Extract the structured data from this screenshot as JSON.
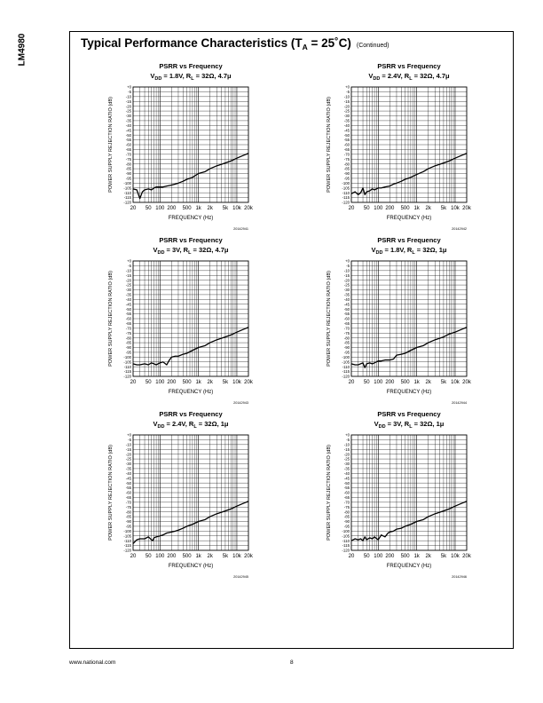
{
  "side_label": "LM4980",
  "heading": {
    "title_start": "Typical Performance Characteristics (T",
    "subscript": "A",
    "title_end": " = 25˚C)",
    "continued": "(Continued)"
  },
  "footer": {
    "website": "www.national.com",
    "page_number": "8"
  },
  "shared_axes": {
    "xlabel": "FREQUENCY (Hz)",
    "ylabel": "POWER SUPPLY REJECTION RATIO (dB)",
    "x_tick_labels": [
      "20",
      "50",
      "100",
      "200",
      "500",
      "1k",
      "2k",
      "5k",
      "10k",
      "20k"
    ],
    "y_tick_labels": [
      "+0",
      "-5",
      "-10",
      "-15",
      "-20",
      "-25",
      "-30",
      "-35",
      "-40",
      "-45",
      "-50",
      "-55",
      "-60",
      "-65",
      "-70",
      "-75",
      "-80",
      "-85",
      "-90",
      "-95",
      "-100",
      "-105",
      "-110",
      "-115",
      "-120"
    ]
  },
  "chart_data": [
    {
      "type": "line",
      "title": "PSRR vs Frequency",
      "subtitle": "VDD = 1.8V, RL = 32Ω, 4.7μ",
      "subtitle_parts": [
        "V",
        "DD",
        " = 1.8V, R",
        "L",
        " = 32Ω, 4.7μ"
      ],
      "figure_id": "20142941",
      "xlabel": "FREQUENCY (Hz)",
      "ylabel": "POWER SUPPLY REJECTION RATIO (dB)",
      "xscale": "log",
      "xlim": [
        20,
        20000
      ],
      "ylim": [
        -120,
        0
      ],
      "grid": true,
      "x": [
        20,
        25,
        30,
        35,
        40,
        50,
        60,
        70,
        80,
        100,
        120,
        150,
        200,
        250,
        300,
        400,
        500,
        700,
        1000,
        1500,
        2000,
        3000,
        5000,
        7000,
        10000,
        15000,
        20000
      ],
      "y": [
        -106,
        -107,
        -116,
        -109,
        -107,
        -106,
        -107,
        -105,
        -104,
        -104,
        -104,
        -103,
        -102,
        -101,
        -100,
        -98,
        -96,
        -94,
        -90,
        -88,
        -85,
        -82,
        -79,
        -77,
        -74,
        -71,
        -69
      ]
    },
    {
      "type": "line",
      "title": "PSRR vs Frequency",
      "subtitle": "VDD = 2.4V, RL = 32Ω, 4.7μ",
      "subtitle_parts": [
        "V",
        "DD",
        " = 2.4V, R",
        "L",
        " = 32Ω, 4.7μ"
      ],
      "figure_id": "20142942",
      "xlabel": "FREQUENCY (Hz)",
      "ylabel": "POWER SUPPLY REJECTION RATIO (dB)",
      "xscale": "log",
      "xlim": [
        20,
        20000
      ],
      "ylim": [
        -120,
        0
      ],
      "grid": true,
      "x": [
        20,
        25,
        30,
        35,
        40,
        45,
        50,
        60,
        70,
        80,
        100,
        120,
        150,
        200,
        250,
        300,
        400,
        500,
        700,
        1000,
        1500,
        2000,
        3000,
        5000,
        7000,
        10000,
        15000,
        20000
      ],
      "y": [
        -111,
        -109,
        -112,
        -110,
        -105,
        -112,
        -109,
        -108,
        -106,
        -107,
        -105,
        -105,
        -104,
        -103,
        -101,
        -100,
        -98,
        -96,
        -94,
        -91,
        -88,
        -85,
        -82,
        -79,
        -77,
        -74,
        -71,
        -69
      ]
    },
    {
      "type": "line",
      "title": "PSRR vs Frequency",
      "subtitle": "VDD = 3V, RL = 32Ω, 4.7μ",
      "subtitle_parts": [
        "V",
        "DD",
        " = 3V, R",
        "L",
        " = 32Ω, 4.7μ"
      ],
      "figure_id": "20142943",
      "xlabel": "FREQUENCY (Hz)",
      "ylabel": "POWER SUPPLY REJECTION RATIO (dB)",
      "xscale": "log",
      "xlim": [
        20,
        20000
      ],
      "ylim": [
        -120,
        0
      ],
      "grid": true,
      "x": [
        20,
        25,
        30,
        40,
        50,
        60,
        70,
        80,
        100,
        120,
        150,
        170,
        200,
        250,
        300,
        400,
        500,
        700,
        1000,
        1500,
        2000,
        3000,
        5000,
        7000,
        10000,
        15000,
        20000
      ],
      "y": [
        -107,
        -108,
        -108,
        -107,
        -108,
        -106,
        -107,
        -108,
        -106,
        -105,
        -108,
        -104,
        -100,
        -99,
        -99,
        -97,
        -96,
        -93,
        -90,
        -88,
        -85,
        -82,
        -79,
        -77,
        -74,
        -71,
        -69
      ]
    },
    {
      "type": "line",
      "title": "PSRR vs Frequency",
      "subtitle": "VDD = 1.8V, RL = 32Ω, 1μ",
      "subtitle_parts": [
        "V",
        "DD",
        " = 1.8V, R",
        "L",
        " = 32Ω, 1μ"
      ],
      "figure_id": "20142944",
      "xlabel": "FREQUENCY (Hz)",
      "ylabel": "POWER SUPPLY REJECTION RATIO (dB)",
      "xscale": "log",
      "xlim": [
        20,
        20000
      ],
      "ylim": [
        -120,
        0
      ],
      "grid": true,
      "x": [
        20,
        25,
        30,
        40,
        45,
        50,
        60,
        70,
        80,
        100,
        120,
        150,
        200,
        250,
        300,
        400,
        500,
        700,
        1000,
        1500,
        2000,
        3000,
        5000,
        7000,
        10000,
        15000,
        20000
      ],
      "y": [
        -107,
        -108,
        -108,
        -106,
        -111,
        -107,
        -106,
        -107,
        -106,
        -104,
        -104,
        -103,
        -103,
        -102,
        -98,
        -97,
        -96,
        -93,
        -90,
        -88,
        -85,
        -82,
        -79,
        -76,
        -74,
        -71,
        -69
      ]
    },
    {
      "type": "line",
      "title": "PSRR vs Frequency",
      "subtitle": "VDD = 2.4V, RL = 32Ω, 1μ",
      "subtitle_parts": [
        "V",
        "DD",
        " = 2.4V, R",
        "L",
        " = 32Ω, 1μ"
      ],
      "figure_id": "20142945",
      "xlabel": "FREQUENCY (Hz)",
      "ylabel": "POWER SUPPLY REJECTION RATIO (dB)",
      "xscale": "log",
      "xlim": [
        20,
        20000
      ],
      "ylim": [
        -120,
        0
      ],
      "grid": true,
      "x": [
        20,
        25,
        30,
        35,
        40,
        50,
        60,
        65,
        70,
        80,
        100,
        120,
        150,
        200,
        250,
        300,
        400,
        500,
        700,
        1000,
        1500,
        2000,
        3000,
        5000,
        7000,
        10000,
        15000,
        20000
      ],
      "y": [
        -113,
        -109,
        -108,
        -108,
        -108,
        -106,
        -109,
        -110,
        -107,
        -106,
        -105,
        -104,
        -102,
        -101,
        -100,
        -99,
        -97,
        -95,
        -93,
        -90,
        -88,
        -85,
        -82,
        -79,
        -77,
        -74,
        -71,
        -69
      ]
    },
    {
      "type": "line",
      "title": "PSRR vs Frequency",
      "subtitle": "VDD = 3V, RL = 32Ω, 1μ",
      "subtitle_parts": [
        "V",
        "DD",
        " = 3V, R",
        "L",
        " = 32Ω, 1μ"
      ],
      "figure_id": "20142946",
      "xlabel": "FREQUENCY (Hz)",
      "ylabel": "POWER SUPPLY REJECTION RATIO (dB)",
      "xscale": "log",
      "xlim": [
        20,
        20000
      ],
      "ylim": [
        -120,
        0
      ],
      "grid": true,
      "x": [
        20,
        25,
        30,
        35,
        40,
        45,
        50,
        60,
        70,
        80,
        100,
        120,
        150,
        180,
        200,
        250,
        300,
        400,
        500,
        700,
        1000,
        1500,
        2000,
        3000,
        5000,
        7000,
        10000,
        15000,
        20000
      ],
      "y": [
        -110,
        -108,
        -109,
        -108,
        -110,
        -106,
        -109,
        -107,
        -108,
        -106,
        -109,
        -104,
        -106,
        -102,
        -101,
        -100,
        -98,
        -97,
        -95,
        -93,
        -90,
        -88,
        -85,
        -82,
        -79,
        -77,
        -74,
        -71,
        -69
      ]
    }
  ]
}
